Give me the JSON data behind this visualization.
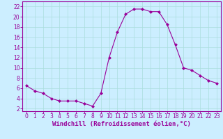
{
  "x": [
    0,
    1,
    2,
    3,
    4,
    5,
    6,
    7,
    8,
    9,
    10,
    11,
    12,
    13,
    14,
    15,
    16,
    17,
    18,
    19,
    20,
    21,
    22,
    23
  ],
  "y": [
    6.5,
    5.5,
    5.0,
    4.0,
    3.5,
    3.5,
    3.5,
    3.0,
    2.5,
    5.0,
    12.0,
    17.0,
    20.5,
    21.5,
    21.5,
    21.0,
    21.0,
    18.5,
    14.5,
    10.0,
    9.5,
    8.5,
    7.5,
    7.0
  ],
  "line_color": "#990099",
  "marker": "D",
  "marker_size": 2,
  "bg_color": "#cceeff",
  "grid_color": "#aadddd",
  "xlabel": "Windchill (Refroidissement éolien,°C)",
  "xlabel_color": "#990099",
  "xlabel_fontsize": 6.5,
  "ylabel_ticks": [
    2,
    4,
    6,
    8,
    10,
    12,
    14,
    16,
    18,
    20,
    22
  ],
  "xtick_labels": [
    "0",
    "1",
    "2",
    "3",
    "4",
    "5",
    "6",
    "7",
    "8",
    "9",
    "1011",
    "1213",
    "1415",
    "1617",
    "1819",
    "2021",
    "2223"
  ],
  "xticks": [
    0,
    1,
    2,
    3,
    4,
    5,
    6,
    7,
    8,
    9,
    10,
    11,
    12,
    13,
    14,
    15,
    16,
    17,
    18,
    19,
    20,
    21,
    22,
    23
  ],
  "xtick_display": [
    "0",
    "1",
    "2",
    "3",
    "4",
    "5",
    "6",
    "7",
    "8",
    "9",
    "10",
    "11",
    "12",
    "13",
    "14",
    "15",
    "16",
    "17",
    "18",
    "19",
    "20",
    "21",
    "22",
    "23"
  ],
  "ylim": [
    1.5,
    23.0
  ],
  "xlim": [
    -0.5,
    23.5
  ],
  "tick_fontsize": 5.5,
  "tick_color": "#990099",
  "axis_color": "#990099",
  "spine_color": "#990099"
}
